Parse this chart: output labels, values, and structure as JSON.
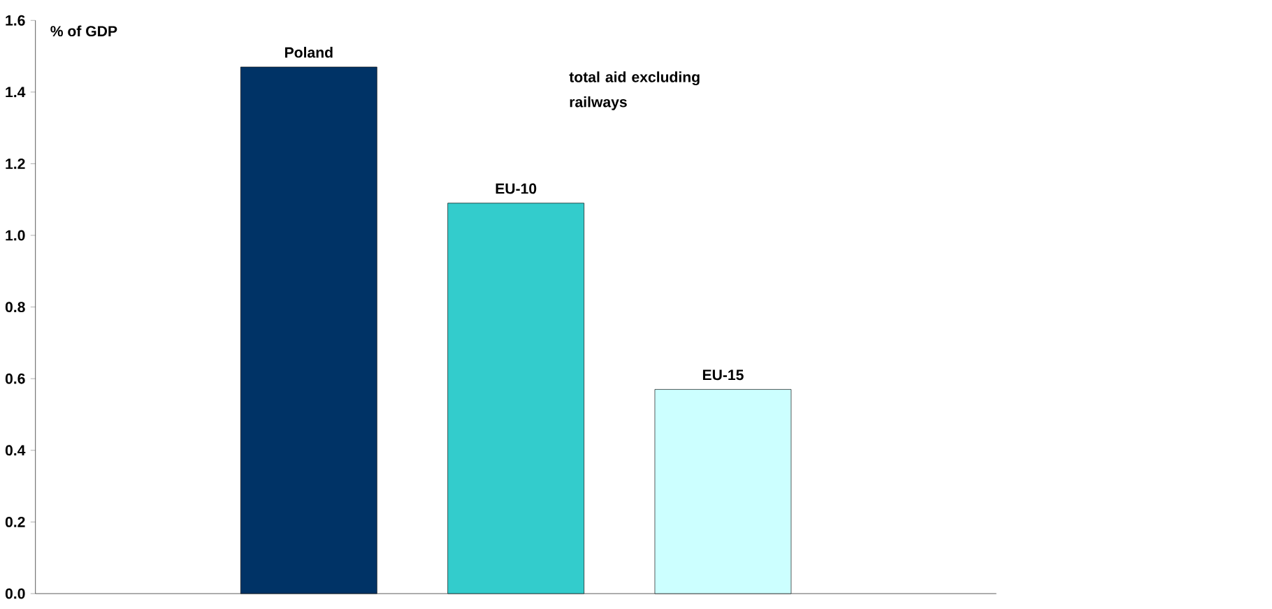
{
  "chart_data": {
    "type": "bar",
    "ylabel": "% of GDP",
    "categories": [
      "Poland",
      "EU-10",
      "EU-15"
    ],
    "values": [
      1.47,
      1.09,
      0.57
    ],
    "colors": [
      "#003366",
      "#33cccc",
      "#ccffff"
    ],
    "ylim": [
      0,
      1.6
    ],
    "yticks": [
      {
        "value": 0,
        "label": "0.0"
      },
      {
        "value": 0.2,
        "label": "0.2"
      },
      {
        "value": 0.4,
        "label": "0.4"
      },
      {
        "value": 0.6,
        "label": "0.6"
      },
      {
        "value": 0.8,
        "label": "0.8"
      },
      {
        "value": 1.0,
        "label": "1.0"
      },
      {
        "value": 1.2,
        "label": "1.2"
      },
      {
        "value": 1.4,
        "label": "1.4"
      },
      {
        "value": 1.6,
        "label": "1.6"
      }
    ],
    "annotations": [
      "total aid excluding railways"
    ],
    "grid": false
  }
}
